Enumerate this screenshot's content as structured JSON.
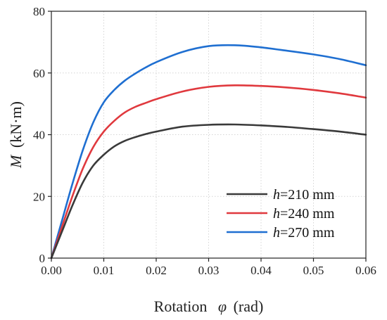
{
  "chart_data": {
    "type": "line",
    "title": "",
    "xlabel": "Rotation",
    "xlabel_symbol": "φ",
    "xlabel_unit": "(rad)",
    "ylabel_symbol": "M",
    "ylabel_unit": "(kN·m)",
    "xlim": [
      0,
      0.06
    ],
    "ylim": [
      0,
      80
    ],
    "xticks": [
      "0.00",
      "0.01",
      "0.02",
      "0.03",
      "0.04",
      "0.05",
      "0.06"
    ],
    "yticks": [
      "0",
      "20",
      "40",
      "60",
      "80"
    ],
    "grid": true,
    "legend_position": "bottom-right",
    "series": [
      {
        "name": "=210 mm",
        "name_prefix": "h",
        "color": "#3a3a3a",
        "x": [
          0,
          0.002,
          0.004,
          0.006,
          0.008,
          0.01,
          0.012,
          0.014,
          0.016,
          0.018,
          0.02,
          0.025,
          0.03,
          0.035,
          0.04,
          0.045,
          0.05,
          0.055,
          0.06
        ],
        "y": [
          0,
          8.5,
          17,
          24.5,
          30,
          33.5,
          36.2,
          38,
          39.2,
          40.2,
          41,
          42.6,
          43.2,
          43.3,
          43,
          42.5,
          41.8,
          41,
          40
        ]
      },
      {
        "name": "=240 mm",
        "name_prefix": "h",
        "color": "#e0393e",
        "x": [
          0,
          0.002,
          0.004,
          0.006,
          0.008,
          0.01,
          0.012,
          0.014,
          0.016,
          0.018,
          0.02,
          0.025,
          0.03,
          0.035,
          0.04,
          0.045,
          0.05,
          0.055,
          0.06
        ],
        "y": [
          0,
          10,
          20,
          29,
          36,
          41,
          44.5,
          47.2,
          49,
          50.3,
          51.5,
          54,
          55.5,
          56,
          55.8,
          55.3,
          54.5,
          53.4,
          52
        ]
      },
      {
        "name": "=270 mm",
        "name_prefix": "h",
        "color": "#1f6fd1",
        "x": [
          0,
          0.002,
          0.004,
          0.006,
          0.008,
          0.01,
          0.012,
          0.014,
          0.016,
          0.018,
          0.02,
          0.025,
          0.03,
          0.035,
          0.04,
          0.045,
          0.05,
          0.055,
          0.06
        ],
        "y": [
          0,
          12,
          24,
          35,
          44,
          50.5,
          54.5,
          57.5,
          59.8,
          61.8,
          63.5,
          66.8,
          68.7,
          69,
          68.3,
          67.2,
          66,
          64.5,
          62.5
        ]
      }
    ]
  }
}
